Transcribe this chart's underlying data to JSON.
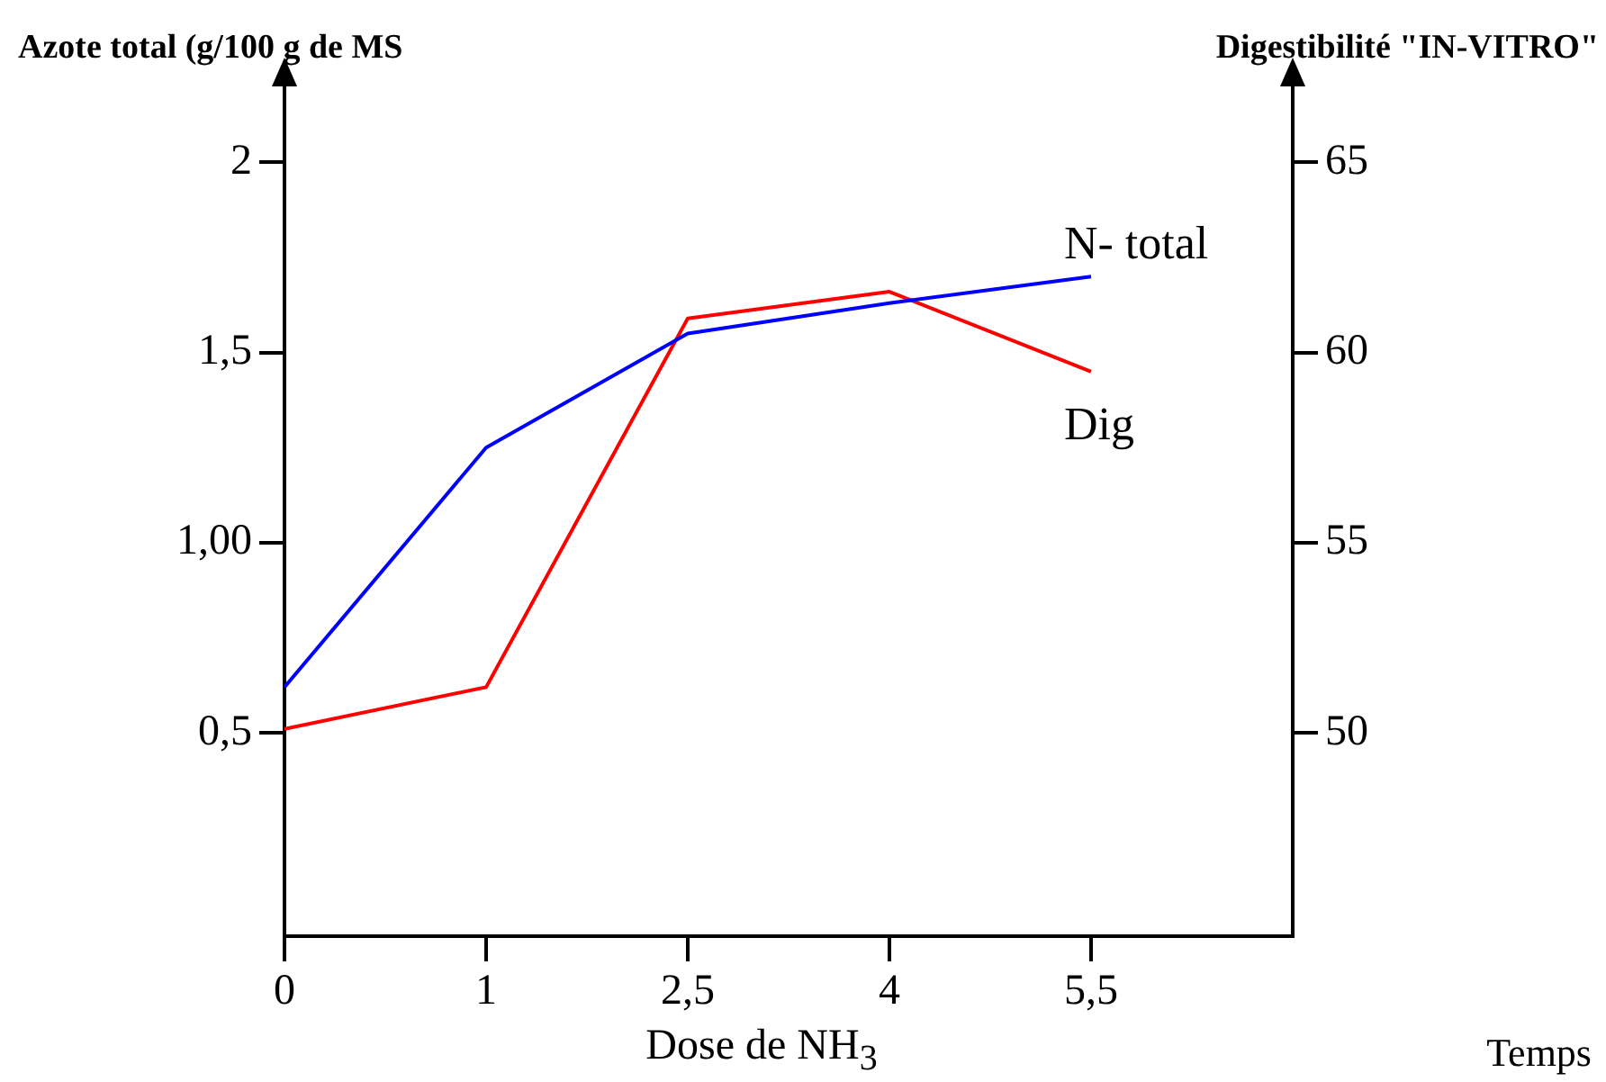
{
  "chart_data": {
    "type": "line",
    "ylabel": "Azote total (g/100 g de MS",
    "y2label": "Digestibilité \"IN-VITRO\"",
    "xlabel": "Dose de NH$_{3}$",
    "annotations": [
      "Temps"
    ],
    "categories": [
      "0",
      "1",
      "2,5",
      "4",
      "5,5"
    ],
    "series": [
      {
        "name": "N- total",
        "color": "#0000ff",
        "values": [
          0.62,
          1.25,
          1.55,
          1.63,
          1.7
        ]
      },
      {
        "name": "Dig",
        "color": "#ff0000",
        "axis": "y2",
        "values": [
          50.1,
          51.2,
          60.9,
          61.6,
          59.5
        ]
      }
    ],
    "ylim": [
      -0.035,
      2.2
    ],
    "yticks": [
      {
        "value": 0.5,
        "label": "0,5"
      },
      {
        "value": 1,
        "label": "1,00"
      },
      {
        "value": 1.5,
        "label": "1,5"
      },
      2
    ],
    "y2lim": [
      44.65,
      67
    ],
    "y2ticks": [
      50,
      55,
      60,
      65
    ],
    "legend": false,
    "grid": false,
    "marker": "none",
    "line_style": "solid"
  }
}
